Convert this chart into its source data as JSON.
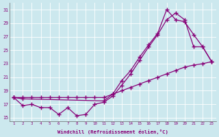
{
  "xlabel": "Windchill (Refroidissement éolien,°C)",
  "bg_color": "#cce8ee",
  "line_color": "#880077",
  "grid_color": "#aaddcc",
  "ylim": [
    14.5,
    32
  ],
  "xlim": [
    0.5,
    23.5
  ],
  "yticks": [
    15,
    17,
    19,
    21,
    23,
    25,
    27,
    29,
    31
  ],
  "xticks": [
    1,
    2,
    3,
    4,
    5,
    6,
    7,
    8,
    9,
    10,
    11,
    12,
    13,
    14,
    15,
    16,
    17,
    18,
    19,
    20,
    21,
    22,
    23
  ],
  "series1_x": [
    1,
    2,
    3,
    4,
    5,
    6,
    7,
    8,
    9,
    10,
    11,
    12,
    13,
    14,
    15,
    16,
    17,
    18,
    19,
    20,
    21,
    22,
    23
  ],
  "series1_y": [
    18,
    16.8,
    17,
    16.5,
    16.5,
    15.5,
    16.5,
    15.3,
    15.5,
    17,
    17.3,
    18.2,
    19.8,
    21.5,
    23.5,
    25.5,
    27.3,
    29.5,
    30.5,
    29.5,
    25.5,
    25.5,
    23.3
  ],
  "series2_x": [
    1,
    2,
    3,
    4,
    5,
    6,
    7,
    8,
    9,
    10,
    11,
    12,
    13,
    14,
    15,
    16,
    17,
    18,
    19,
    20,
    21,
    22,
    23
  ],
  "series2_y": [
    18,
    18,
    18,
    18,
    18,
    18,
    18,
    18,
    18,
    18,
    18,
    18.5,
    19,
    19.5,
    20,
    20.5,
    21,
    21.5,
    22,
    22.5,
    22.8,
    23.0,
    23.3
  ],
  "series3_x": [
    1,
    2,
    11,
    12,
    13,
    14,
    15,
    16,
    17,
    18,
    19,
    20,
    21,
    22,
    23
  ],
  "series3_y": [
    18,
    17.8,
    17.5,
    18.5,
    20.5,
    22.0,
    24.0,
    25.8,
    27.5,
    31.0,
    29.5,
    29.2,
    27.3,
    25.5,
    23.3
  ]
}
